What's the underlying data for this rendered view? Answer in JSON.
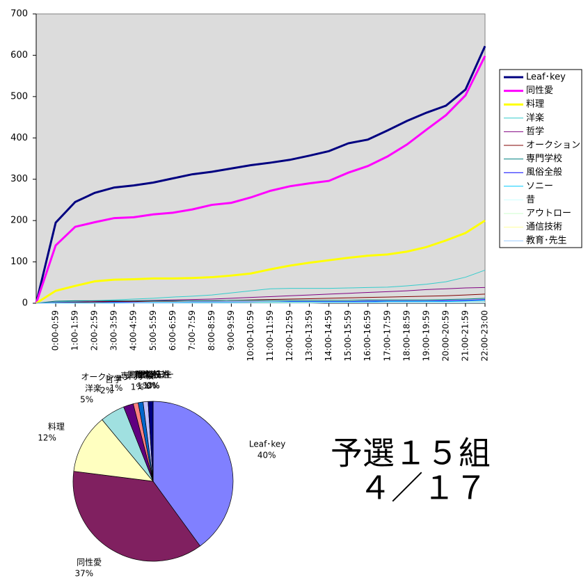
{
  "chart_data": [
    {
      "type": "line",
      "categories": [
        null,
        "0:00-0:59",
        "1:00-1:59",
        "2:00-2:59",
        "3:00-3:59",
        "4:00-4:59",
        "5:00-5:59",
        "6:00-6:59",
        "7:00-7:59",
        "8:00-8:59",
        "9:00-9:59",
        "10:00-10:59",
        "11:00-11:59",
        "12:00-12:59",
        "13:00-13:59",
        "14:00-14:59",
        "15:00-15:59",
        "16:00-16:59",
        "17:00-17:59",
        "18:00-18:59",
        "19:00-19:59",
        "20:00-20:59",
        "21:00-21:59",
        "22:00-23:00"
      ],
      "ylim": [
        0,
        700
      ],
      "yticks": [
        0,
        100,
        200,
        300,
        400,
        500,
        600,
        700
      ],
      "legend": "right",
      "series": [
        {
          "name": "Leaf･key",
          "color": "#000080",
          "values": [
            0,
            195,
            245,
            267,
            280,
            285,
            292,
            302,
            312,
            318,
            326,
            334,
            340,
            347,
            357,
            368,
            387,
            396,
            418,
            441,
            461,
            478,
            517,
            622
          ]
        },
        {
          "name": "同性愛",
          "color": "#ff00ff",
          "values": [
            0,
            140,
            185,
            196,
            206,
            208,
            215,
            219,
            227,
            238,
            243,
            256,
            272,
            283,
            290,
            296,
            316,
            332,
            355,
            384,
            420,
            455,
            503,
            598
          ]
        },
        {
          "name": "料理",
          "color": "#ffff00",
          "values": [
            0,
            30,
            42,
            53,
            57,
            58,
            60,
            60,
            61,
            63,
            67,
            72,
            82,
            91,
            98,
            104,
            110,
            115,
            118,
            125,
            136,
            152,
            170,
            200
          ]
        },
        {
          "name": "洋楽",
          "color": "#33cccc",
          "values": [
            0,
            3,
            5,
            6,
            8,
            10,
            12,
            15,
            17,
            20,
            25,
            30,
            35,
            36,
            36,
            36,
            37,
            38,
            39,
            42,
            46,
            52,
            63,
            80
          ]
        },
        {
          "name": "哲学",
          "color": "#800080",
          "values": [
            0,
            2,
            3,
            4,
            5,
            6,
            7,
            8,
            9,
            10,
            12,
            14,
            16,
            18,
            20,
            22,
            24,
            26,
            28,
            30,
            33,
            35,
            37,
            38
          ]
        },
        {
          "name": "オークション",
          "color": "#800000",
          "values": [
            0,
            1,
            2,
            3,
            4,
            4,
            5,
            5,
            6,
            6,
            7,
            8,
            9,
            10,
            11,
            12,
            13,
            14,
            15,
            16,
            17,
            18,
            20,
            22
          ]
        },
        {
          "name": "専門学校",
          "color": "#008080",
          "values": [
            0,
            5,
            6,
            6,
            6,
            6,
            6,
            6,
            6,
            6,
            7,
            7,
            7,
            7,
            7,
            7,
            7,
            8,
            8,
            8,
            8,
            9,
            10,
            12
          ]
        },
        {
          "name": "風俗全般",
          "color": "#0000ff",
          "values": [
            0,
            1,
            1,
            1,
            2,
            2,
            2,
            2,
            3,
            3,
            3,
            3,
            3,
            4,
            4,
            4,
            4,
            5,
            5,
            5,
            5,
            6,
            7,
            9
          ]
        },
        {
          "name": "ソニー",
          "color": "#00ccff",
          "values": [
            0,
            1,
            1,
            1,
            1,
            1,
            2,
            2,
            2,
            2,
            2,
            2,
            3,
            3,
            3,
            3,
            3,
            3,
            4,
            4,
            4,
            4,
            5,
            6
          ]
        },
        {
          "name": "昔",
          "color": "#ccffff",
          "values": [
            0,
            0,
            0,
            0,
            0,
            1,
            1,
            1,
            1,
            1,
            1,
            1,
            1,
            1,
            1,
            1,
            1,
            1,
            1,
            1,
            2,
            2,
            2,
            2
          ]
        },
        {
          "name": "アウトロー",
          "color": "#ccffcc",
          "values": [
            0,
            0,
            0,
            0,
            0,
            0,
            0,
            0,
            1,
            1,
            1,
            1,
            1,
            1,
            1,
            1,
            1,
            1,
            1,
            1,
            1,
            1,
            1,
            2
          ]
        },
        {
          "name": "通信技術",
          "color": "#ffff99",
          "values": [
            0,
            0,
            0,
            0,
            0,
            0,
            0,
            0,
            0,
            0,
            0,
            1,
            1,
            1,
            1,
            1,
            1,
            1,
            1,
            1,
            1,
            1,
            1,
            1
          ]
        },
        {
          "name": "教育･先生",
          "color": "#99ccff",
          "values": [
            0,
            0,
            0,
            0,
            0,
            0,
            0,
            0,
            0,
            0,
            0,
            0,
            0,
            0,
            0,
            1,
            1,
            1,
            1,
            1,
            1,
            1,
            1,
            1
          ]
        }
      ]
    },
    {
      "type": "pie",
      "categories": [
        "Leaf･key",
        "同性愛",
        "料理",
        "洋楽",
        "哲学",
        "オークション",
        "専門学校",
        "風俗全般",
        "ソニー",
        "昔",
        "アウトロー",
        "通信技術",
        "教育･先生"
      ],
      "values": [
        40,
        37,
        12,
        5,
        2,
        1,
        1,
        1,
        1,
        0,
        0,
        0,
        0
      ],
      "value_labels": [
        "40%",
        "37%",
        "12%",
        "5%",
        "2%",
        "1%",
        "1%",
        "1%",
        "1%",
        "0%",
        "0%",
        "0%",
        "0%"
      ],
      "colors": [
        "#8080ff",
        "#802060",
        "#ffffc0",
        "#a0e0e0",
        "#600080",
        "#ff8080",
        "#0066cc",
        "#c0c0ff",
        "#000080",
        "#ff00ff",
        "#ffff00",
        "#00ffff",
        "#800080"
      ]
    }
  ],
  "heading": {
    "lines": [
      "予選１５組",
      "４／１７"
    ]
  }
}
